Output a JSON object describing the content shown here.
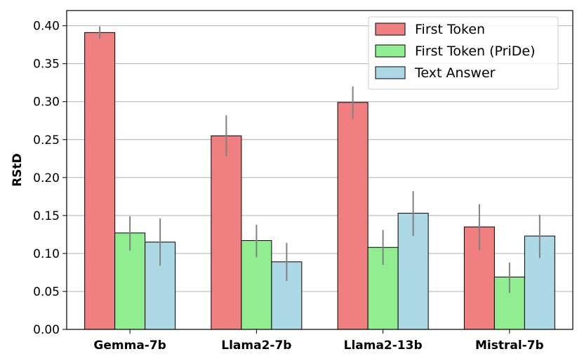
{
  "chart_data": {
    "type": "bar",
    "title": "",
    "xlabel": "",
    "ylabel": "RStD",
    "ylim": [
      0,
      0.42
    ],
    "yticks": [
      "0.00",
      "0.05",
      "0.10",
      "0.15",
      "0.20",
      "0.25",
      "0.30",
      "0.35",
      "0.40"
    ],
    "grid": "horizontal",
    "legend_position": "top-right",
    "categories": [
      "Gemma-7b",
      "Llama2-7b",
      "Llama2-13b",
      "Mistral-7b"
    ],
    "series": [
      {
        "name": "First Token",
        "color": "#f08080",
        "values": [
          0.391,
          0.255,
          0.299,
          0.135
        ],
        "errors": [
          [
            0.383,
            0.399
          ],
          [
            0.228,
            0.282
          ],
          [
            0.277,
            0.32
          ],
          [
            0.104,
            0.165
          ]
        ]
      },
      {
        "name": "First Token (PriDe)",
        "color": "#90ee90",
        "values": [
          0.127,
          0.117,
          0.108,
          0.069
        ],
        "errors": [
          [
            0.104,
            0.149
          ],
          [
            0.095,
            0.138
          ],
          [
            0.085,
            0.131
          ],
          [
            0.048,
            0.088
          ]
        ]
      },
      {
        "name": "Text Answer",
        "color": "#add8e6",
        "values": [
          0.115,
          0.089,
          0.153,
          0.123
        ],
        "errors": [
          [
            0.084,
            0.146
          ],
          [
            0.064,
            0.114
          ],
          [
            0.123,
            0.182
          ],
          [
            0.094,
            0.151
          ]
        ]
      }
    ]
  }
}
